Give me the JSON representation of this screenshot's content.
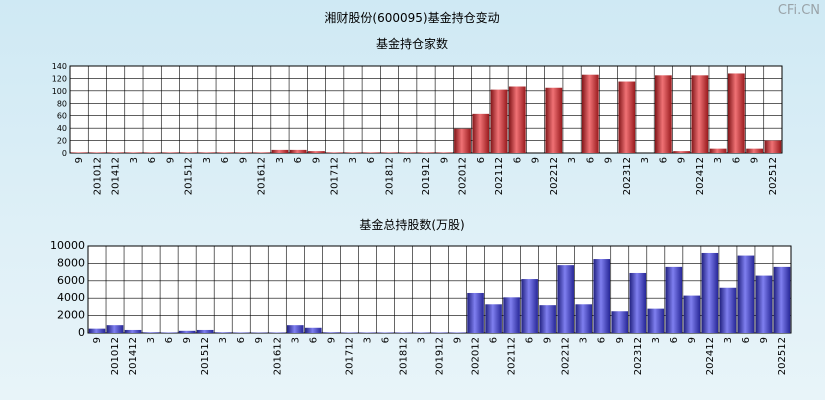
{
  "page_title": "湘财股份(600095)基金持仓变动",
  "watermark": "CFi.CN",
  "chart_data": [
    {
      "type": "bar",
      "title": "基金持仓家数",
      "ylim": [
        0,
        140
      ],
      "yticks": [
        0,
        20,
        40,
        60,
        80,
        100,
        120,
        140
      ],
      "grid": true,
      "bar_color": "#e8262b",
      "categories": [
        "9",
        "201012",
        "201412",
        "3",
        "6",
        "9",
        "201512",
        "3",
        "6",
        "9",
        "201612",
        "3",
        "6",
        "9",
        "201712",
        "3",
        "6",
        "201812",
        "3",
        "201912",
        "9",
        "202012",
        "6",
        "202112",
        "6",
        "9",
        "202212",
        "3",
        "6",
        "9",
        "202312",
        "3",
        "6",
        "9",
        "202412",
        "3",
        "6",
        "9",
        "202512"
      ],
      "tick_labels": [
        "9",
        "201012",
        "201412",
        "3",
        "6",
        "9",
        "201512",
        "3",
        "6",
        "9",
        "201612",
        "3",
        "6",
        "9",
        "201712",
        "3",
        "6",
        "201812",
        "3",
        "201912",
        "9",
        "202012",
        "6",
        "202112",
        "6",
        "9",
        "202212",
        "3",
        "6",
        "9",
        "202312",
        "3",
        "6",
        "9",
        "202412",
        "3",
        "6",
        "9",
        "202512"
      ],
      "values": [
        1,
        1,
        1,
        1,
        1,
        1,
        1,
        1,
        1,
        1,
        1,
        5,
        5,
        3,
        1,
        1,
        1,
        1,
        1,
        1,
        1,
        39,
        63,
        102,
        107,
        0,
        105,
        0,
        126,
        0,
        115,
        0,
        125,
        3,
        125,
        7,
        128,
        7,
        20
      ]
    },
    {
      "type": "bar",
      "title": "基金总持股数(万股)",
      "ylim": [
        0,
        10000
      ],
      "yticks": [
        0,
        2000,
        4000,
        6000,
        8000,
        10000
      ],
      "grid": true,
      "bar_color": "#3a3ae6",
      "categories": [
        "9",
        "201012",
        "201412",
        "3",
        "6",
        "9",
        "201512",
        "3",
        "6",
        "9",
        "201612",
        "3",
        "6",
        "9",
        "201712",
        "3",
        "6",
        "201812",
        "3",
        "201912",
        "9",
        "202012",
        "6",
        "202112",
        "6",
        "9",
        "202212",
        "3",
        "6",
        "9",
        "202312",
        "3",
        "6",
        "9",
        "202412",
        "3",
        "6",
        "9",
        "202512"
      ],
      "tick_labels": [
        "9",
        "201012",
        "201412",
        "3",
        "6",
        "9",
        "201512",
        "3",
        "6",
        "9",
        "201612",
        "3",
        "6",
        "9",
        "201712",
        "3",
        "6",
        "201812",
        "3",
        "201912",
        "9",
        "202012",
        "6",
        "202112",
        "6",
        "9",
        "202212",
        "3",
        "6",
        "9",
        "202312",
        "3",
        "6",
        "9",
        "202412",
        "3",
        "6",
        "9",
        "202512"
      ],
      "values": [
        500,
        900,
        350,
        80,
        60,
        250,
        350,
        80,
        60,
        50,
        60,
        900,
        600,
        80,
        60,
        60,
        60,
        60,
        60,
        60,
        60,
        4600,
        3300,
        4100,
        6200,
        3200,
        7800,
        3300,
        8500,
        2500,
        6900,
        2800,
        7600,
        4300,
        9200,
        5200,
        8900,
        6600,
        7600
      ]
    }
  ]
}
